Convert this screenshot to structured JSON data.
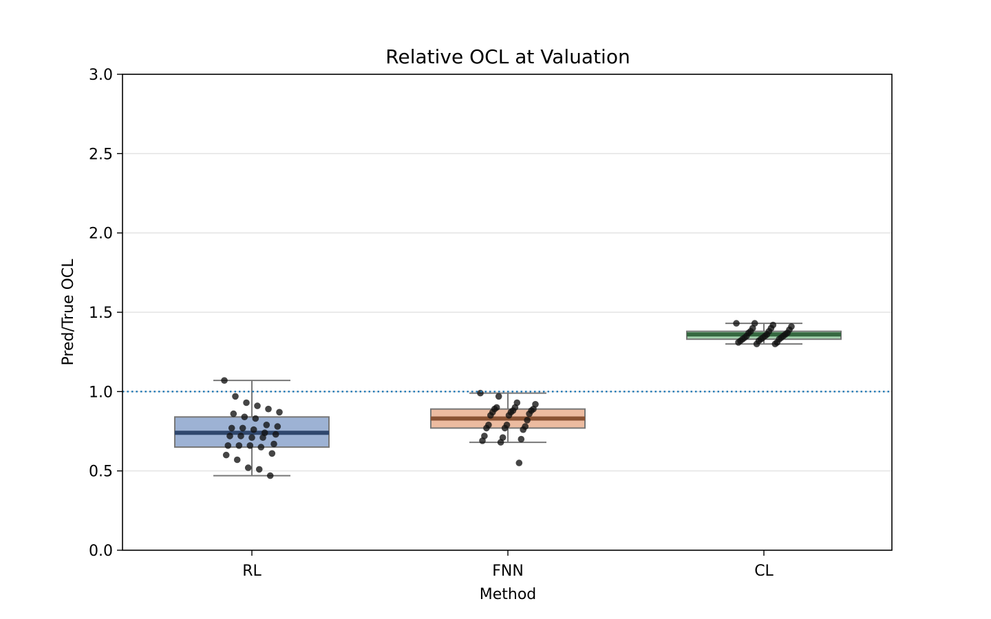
{
  "chart_data": {
    "type": "box",
    "title": "Relative OCL at Valuation",
    "xlabel": "Method",
    "ylabel": "Pred/True OCL",
    "ylim": [
      0,
      3
    ],
    "yticks": [
      "0.0",
      "0.5",
      "1.0",
      "1.5",
      "2.0",
      "2.5",
      "3.0"
    ],
    "grid": "horizontal",
    "reference_line": {
      "y": 1.0,
      "style": "dotted",
      "color": "#1f77b4"
    },
    "categories": [
      "RL",
      "FNN",
      "CL"
    ],
    "series": [
      {
        "category": "RL",
        "color": "#4c72b0",
        "box": {
          "q1": 0.65,
          "median": 0.74,
          "q3": 0.84,
          "whisker_low": 0.47,
          "whisker_high": 1.07
        },
        "points": [
          1.07,
          0.97,
          0.93,
          0.91,
          0.89,
          0.87,
          0.86,
          0.84,
          0.83,
          0.79,
          0.78,
          0.77,
          0.77,
          0.76,
          0.74,
          0.73,
          0.72,
          0.72,
          0.71,
          0.71,
          0.67,
          0.66,
          0.66,
          0.66,
          0.65,
          0.61,
          0.6,
          0.57,
          0.52,
          0.51,
          0.47
        ]
      },
      {
        "category": "FNN",
        "color": "#dd8452",
        "box": {
          "q1": 0.77,
          "median": 0.83,
          "q3": 0.89,
          "whisker_low": 0.68,
          "whisker_high": 0.99
        },
        "points": [
          0.99,
          0.97,
          0.93,
          0.92,
          0.9,
          0.9,
          0.89,
          0.89,
          0.88,
          0.88,
          0.87,
          0.87,
          0.86,
          0.85,
          0.85,
          0.82,
          0.79,
          0.79,
          0.78,
          0.77,
          0.77,
          0.76,
          0.72,
          0.71,
          0.7,
          0.69,
          0.68,
          0.55
        ]
      },
      {
        "category": "CL",
        "color": "#55a868",
        "box": {
          "q1": 1.33,
          "median": 1.36,
          "q3": 1.38,
          "whisker_low": 1.3,
          "whisker_high": 1.43
        },
        "points": [
          1.43,
          1.43,
          1.42,
          1.41,
          1.4,
          1.4,
          1.39,
          1.38,
          1.38,
          1.37,
          1.37,
          1.36,
          1.36,
          1.35,
          1.35,
          1.35,
          1.34,
          1.34,
          1.34,
          1.33,
          1.33,
          1.33,
          1.32,
          1.32,
          1.31,
          1.31,
          1.3,
          1.3
        ]
      }
    ]
  }
}
